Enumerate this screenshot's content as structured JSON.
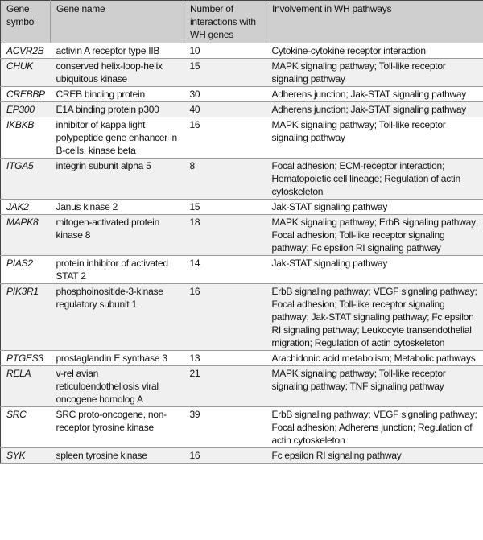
{
  "table": {
    "headers": [
      "Gene symbol",
      "Gene name",
      "Number of interactions with WH genes",
      "Involvement in WH pathways"
    ],
    "rows": [
      {
        "symbol": "ACVR2B",
        "name": "activin A receptor type IIB",
        "interactions": "10",
        "pathways": "Cytokine-cytokine receptor interaction"
      },
      {
        "symbol": "CHUK",
        "name": "conserved helix-loop-helix ubiquitous kinase",
        "interactions": "15",
        "pathways": "MAPK signaling pathway; Toll-like receptor signaling pathway"
      },
      {
        "symbol": "CREBBP",
        "name": "CREB binding protein",
        "interactions": "30",
        "pathways": "Adherens junction; Jak-STAT signaling pathway"
      },
      {
        "symbol": "EP300",
        "name": "E1A binding protein p300",
        "interactions": "40",
        "pathways": "Adherens junction; Jak-STAT signaling pathway"
      },
      {
        "symbol": "IKBKB",
        "name": "inhibitor of kappa light polypeptide gene enhancer in B-cells, kinase beta",
        "interactions": "16",
        "pathways": "MAPK signaling pathway; Toll-like receptor signaling pathway"
      },
      {
        "symbol": "ITGA5",
        "name": "integrin subunit alpha 5",
        "interactions": "8",
        "pathways": "Focal adhesion; ECM-receptor interaction; Hematopoietic cell lineage; Regulation of actin cytoskeleton"
      },
      {
        "symbol": "JAK2",
        "name": "Janus kinase 2",
        "interactions": "15",
        "pathways": "Jak-STAT signaling pathway"
      },
      {
        "symbol": "MAPK8",
        "name": "mitogen-activated protein kinase 8",
        "interactions": "18",
        "pathways": "MAPK signaling pathway; ErbB signaling pathway; Focal adhesion; Toll-like receptor signaling pathway; Fc epsilon RI signaling pathway"
      },
      {
        "symbol": "PIAS2",
        "name": "protein inhibitor of activated STAT 2",
        "interactions": "14",
        "pathways": "Jak-STAT signaling pathway"
      },
      {
        "symbol": "PIK3R1",
        "name": "phosphoinositide-3-kinase regulatory subunit 1",
        "interactions": "16",
        "pathways": "ErbB signaling pathway; VEGF signaling pathway; Focal adhesion; Toll-like receptor signaling pathway; Jak-STAT signaling pathway; Fc epsilon RI signaling pathway; Leukocyte transendothelial migration; Regulation of actin cytoskeleton"
      },
      {
        "symbol": "PTGES3",
        "name": "prostaglandin E synthase 3",
        "interactions": "13",
        "pathways": "Arachidonic acid metabolism; Metabolic pathways"
      },
      {
        "symbol": "RELA",
        "name": "v-rel avian reticuloendotheliosis viral oncogene homolog A",
        "interactions": "21",
        "pathways": "MAPK signaling pathway; Toll-like receptor signaling pathway; TNF signaling pathway"
      },
      {
        "symbol": "SRC",
        "name": "SRC proto-oncogene, non-receptor tyrosine kinase",
        "interactions": "39",
        "pathways": "ErbB signaling pathway; VEGF signaling pathway; Focal adhesion; Adherens junction; Regulation of actin cytoskeleton"
      },
      {
        "symbol": "SYK",
        "name": "spleen tyrosine kinase",
        "interactions": "16",
        "pathways": "Fc epsilon RI signaling pathway"
      }
    ]
  },
  "colors": {
    "header_bg": "#cfcfcf",
    "alt_row_bg": "#f0f0f0",
    "border": "#9a9a9a"
  }
}
